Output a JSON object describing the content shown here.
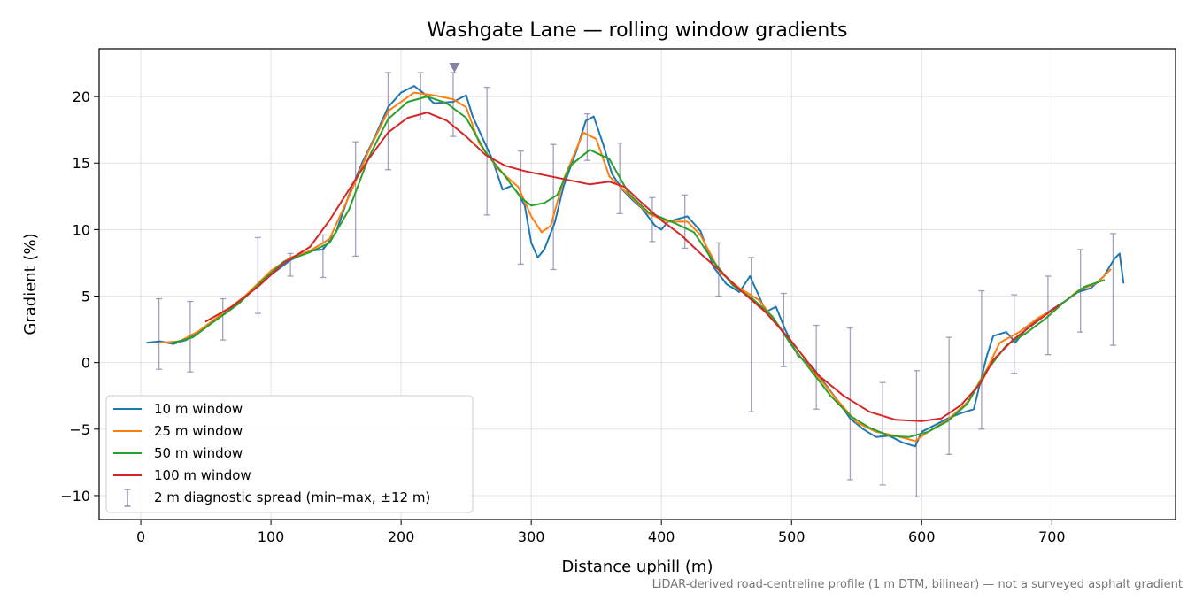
{
  "chart_data": {
    "type": "line",
    "title": "Washgate Lane — rolling window gradients",
    "xlabel": "Distance uphill (m)",
    "ylabel": "Gradient (%)",
    "xlim": [
      -32,
      795
    ],
    "ylim": [
      -11.8,
      23.6
    ],
    "x_ticks": [
      0,
      100,
      200,
      300,
      400,
      500,
      600,
      700
    ],
    "y_ticks": [
      -10,
      -5,
      0,
      5,
      10,
      15,
      20
    ],
    "x_tick_labels": [
      "0",
      "100",
      "200",
      "300",
      "400",
      "500",
      "600",
      "700"
    ],
    "y_tick_labels": [
      "−10",
      "−5",
      "0",
      "5",
      "10",
      "15",
      "20"
    ],
    "grid": true,
    "legend_position": "lower-left",
    "footnote": "LiDAR-derived road-centreline profile (1 m DTM, bilinear) — not a surveyed asphalt gradient",
    "marker": {
      "x": 241,
      "y": 22.2,
      "color": "#8a7fa8"
    },
    "series": [
      {
        "name": "10 m window",
        "color": "#1f77b4",
        "points": [
          [
            5,
            1.5
          ],
          [
            15,
            1.6
          ],
          [
            25,
            1.4
          ],
          [
            35,
            1.7
          ],
          [
            50,
            2.7
          ],
          [
            65,
            3.7
          ],
          [
            80,
            4.9
          ],
          [
            100,
            6.6
          ],
          [
            115,
            7.7
          ],
          [
            130,
            8.4
          ],
          [
            140,
            8.5
          ],
          [
            150,
            9.8
          ],
          [
            160,
            12.6
          ],
          [
            170,
            15.0
          ],
          [
            180,
            17.0
          ],
          [
            190,
            19.2
          ],
          [
            200,
            20.3
          ],
          [
            210,
            20.8
          ],
          [
            218,
            20.2
          ],
          [
            225,
            19.5
          ],
          [
            240,
            19.6
          ],
          [
            250,
            20.1
          ],
          [
            255,
            18.5
          ],
          [
            262,
            17.0
          ],
          [
            270,
            15.3
          ],
          [
            278,
            13.0
          ],
          [
            285,
            13.3
          ],
          [
            290,
            12.7
          ],
          [
            295,
            11.8
          ],
          [
            300,
            9.0
          ],
          [
            305,
            7.9
          ],
          [
            310,
            8.5
          ],
          [
            318,
            10.5
          ],
          [
            325,
            13.3
          ],
          [
            335,
            16.0
          ],
          [
            342,
            18.2
          ],
          [
            348,
            18.5
          ],
          [
            355,
            16.5
          ],
          [
            362,
            14.2
          ],
          [
            370,
            13.0
          ],
          [
            378,
            12.2
          ],
          [
            385,
            11.6
          ],
          [
            395,
            10.3
          ],
          [
            400,
            10.0
          ],
          [
            405,
            10.6
          ],
          [
            420,
            11.0
          ],
          [
            430,
            9.9
          ],
          [
            440,
            7.2
          ],
          [
            450,
            5.9
          ],
          [
            460,
            5.3
          ],
          [
            468,
            6.5
          ],
          [
            475,
            5.0
          ],
          [
            480,
            3.8
          ],
          [
            488,
            4.2
          ],
          [
            495,
            2.5
          ],
          [
            505,
            0.5
          ],
          [
            515,
            -0.2
          ],
          [
            525,
            -1.5
          ],
          [
            535,
            -2.8
          ],
          [
            545,
            -4.2
          ],
          [
            555,
            -5.0
          ],
          [
            565,
            -5.6
          ],
          [
            575,
            -5.5
          ],
          [
            585,
            -6.0
          ],
          [
            595,
            -6.3
          ],
          [
            600,
            -5.2
          ],
          [
            610,
            -4.7
          ],
          [
            620,
            -4.2
          ],
          [
            630,
            -3.8
          ],
          [
            640,
            -3.5
          ],
          [
            645,
            -1.5
          ],
          [
            650,
            0.5
          ],
          [
            655,
            2.0
          ],
          [
            665,
            2.3
          ],
          [
            672,
            1.5
          ],
          [
            680,
            2.5
          ],
          [
            690,
            3.3
          ],
          [
            700,
            4.0
          ],
          [
            710,
            4.6
          ],
          [
            720,
            5.3
          ],
          [
            730,
            5.6
          ],
          [
            740,
            6.5
          ],
          [
            748,
            7.8
          ],
          [
            752,
            8.2
          ],
          [
            755,
            6.0
          ]
        ]
      },
      {
        "name": "25 m window",
        "color": "#ff7f0e",
        "points": [
          [
            15,
            1.5
          ],
          [
            30,
            1.6
          ],
          [
            45,
            2.4
          ],
          [
            60,
            3.5
          ],
          [
            80,
            5.0
          ],
          [
            100,
            6.9
          ],
          [
            115,
            7.9
          ],
          [
            130,
            8.4
          ],
          [
            145,
            9.3
          ],
          [
            160,
            12.5
          ],
          [
            175,
            15.9
          ],
          [
            190,
            18.9
          ],
          [
            210,
            20.3
          ],
          [
            225,
            20.1
          ],
          [
            240,
            19.8
          ],
          [
            250,
            19.2
          ],
          [
            260,
            16.5
          ],
          [
            275,
            14.5
          ],
          [
            290,
            13.2
          ],
          [
            300,
            11.0
          ],
          [
            308,
            9.8
          ],
          [
            315,
            10.3
          ],
          [
            325,
            13.8
          ],
          [
            340,
            17.3
          ],
          [
            350,
            16.8
          ],
          [
            360,
            14.0
          ],
          [
            375,
            12.6
          ],
          [
            390,
            11.2
          ],
          [
            405,
            10.6
          ],
          [
            420,
            10.6
          ],
          [
            430,
            9.6
          ],
          [
            445,
            6.8
          ],
          [
            460,
            5.6
          ],
          [
            475,
            4.7
          ],
          [
            490,
            2.8
          ],
          [
            505,
            0.6
          ],
          [
            520,
            -1.0
          ],
          [
            535,
            -2.8
          ],
          [
            550,
            -4.5
          ],
          [
            565,
            -5.2
          ],
          [
            580,
            -5.5
          ],
          [
            595,
            -5.9
          ],
          [
            605,
            -5.2
          ],
          [
            620,
            -4.3
          ],
          [
            635,
            -3.0
          ],
          [
            650,
            -0.5
          ],
          [
            660,
            1.5
          ],
          [
            675,
            2.3
          ],
          [
            690,
            3.4
          ],
          [
            705,
            4.2
          ],
          [
            720,
            5.4
          ],
          [
            735,
            6.0
          ],
          [
            745,
            7.0
          ]
        ]
      },
      {
        "name": "50 m window",
        "color": "#2ca02c",
        "points": [
          [
            25,
            1.5
          ],
          [
            40,
            1.9
          ],
          [
            55,
            3.0
          ],
          [
            75,
            4.4
          ],
          [
            95,
            6.3
          ],
          [
            110,
            7.6
          ],
          [
            130,
            8.3
          ],
          [
            145,
            9.0
          ],
          [
            160,
            11.5
          ],
          [
            175,
            15.4
          ],
          [
            190,
            18.3
          ],
          [
            205,
            19.6
          ],
          [
            220,
            20.0
          ],
          [
            235,
            19.5
          ],
          [
            250,
            18.4
          ],
          [
            265,
            15.8
          ],
          [
            280,
            14.0
          ],
          [
            292,
            12.4
          ],
          [
            300,
            11.8
          ],
          [
            310,
            12.0
          ],
          [
            320,
            12.6
          ],
          [
            330,
            14.8
          ],
          [
            345,
            16.0
          ],
          [
            360,
            15.3
          ],
          [
            375,
            12.7
          ],
          [
            390,
            11.3
          ],
          [
            410,
            10.5
          ],
          [
            425,
            9.8
          ],
          [
            440,
            7.6
          ],
          [
            455,
            5.8
          ],
          [
            470,
            4.8
          ],
          [
            485,
            3.5
          ],
          [
            500,
            1.3
          ],
          [
            515,
            -0.6
          ],
          [
            530,
            -2.5
          ],
          [
            545,
            -4.0
          ],
          [
            560,
            -4.9
          ],
          [
            575,
            -5.5
          ],
          [
            590,
            -5.6
          ],
          [
            605,
            -5.2
          ],
          [
            620,
            -4.4
          ],
          [
            635,
            -3.1
          ],
          [
            650,
            -0.6
          ],
          [
            665,
            1.3
          ],
          [
            680,
            2.2
          ],
          [
            695,
            3.3
          ],
          [
            710,
            4.6
          ],
          [
            725,
            5.7
          ],
          [
            740,
            6.2
          ]
        ]
      },
      {
        "name": "100 m window",
        "color": "#d62728",
        "points": [
          [
            50,
            3.1
          ],
          [
            70,
            4.2
          ],
          [
            90,
            5.7
          ],
          [
            110,
            7.5
          ],
          [
            130,
            8.7
          ],
          [
            145,
            10.7
          ],
          [
            160,
            13.0
          ],
          [
            175,
            15.3
          ],
          [
            190,
            17.3
          ],
          [
            205,
            18.4
          ],
          [
            220,
            18.8
          ],
          [
            235,
            18.2
          ],
          [
            250,
            17.0
          ],
          [
            265,
            15.6
          ],
          [
            280,
            14.8
          ],
          [
            295,
            14.4
          ],
          [
            315,
            14.0
          ],
          [
            330,
            13.7
          ],
          [
            345,
            13.4
          ],
          [
            360,
            13.6
          ],
          [
            372,
            13.2
          ],
          [
            385,
            12.0
          ],
          [
            400,
            10.7
          ],
          [
            415,
            9.6
          ],
          [
            430,
            8.2
          ],
          [
            445,
            6.9
          ],
          [
            460,
            5.5
          ],
          [
            480,
            3.8
          ],
          [
            500,
            1.6
          ],
          [
            520,
            -0.9
          ],
          [
            540,
            -2.5
          ],
          [
            560,
            -3.7
          ],
          [
            580,
            -4.3
          ],
          [
            600,
            -4.4
          ],
          [
            615,
            -4.2
          ],
          [
            630,
            -3.2
          ],
          [
            645,
            -1.6
          ],
          [
            655,
            0.2
          ],
          [
            670,
            1.7
          ],
          [
            690,
            3.2
          ],
          [
            705,
            4.3
          ]
        ]
      }
    ],
    "errorbars": {
      "name": "2 m diagnostic spread (min–max, ±12 m)",
      "color": "#8a7fa8",
      "points": [
        [
          14,
          -0.5,
          4.8
        ],
        [
          38,
          -0.7,
          4.6
        ],
        [
          63,
          1.7,
          4.8
        ],
        [
          90,
          3.7,
          9.4
        ],
        [
          115,
          6.5,
          8.2
        ],
        [
          140,
          6.4,
          9.6
        ],
        [
          165,
          8.0,
          16.6
        ],
        [
          190,
          14.5,
          21.8
        ],
        [
          215,
          18.3,
          21.8
        ],
        [
          240,
          17.0,
          21.8
        ],
        [
          266,
          11.1,
          20.7
        ],
        [
          292,
          7.4,
          15.9
        ],
        [
          317,
          7.0,
          16.4
        ],
        [
          343,
          15.2,
          18.7
        ],
        [
          368,
          11.2,
          16.5
        ],
        [
          393,
          9.1,
          12.4
        ],
        [
          418,
          8.6,
          12.6
        ],
        [
          444,
          5.0,
          9.0
        ],
        [
          469,
          -3.7,
          7.9
        ],
        [
          494,
          -0.3,
          5.2
        ],
        [
          519,
          -3.5,
          2.8
        ],
        [
          545,
          -8.8,
          2.6
        ],
        [
          570,
          -9.2,
          -1.5
        ],
        [
          596,
          -10.1,
          -0.6
        ],
        [
          621,
          -6.9,
          1.9
        ],
        [
          646,
          -5.0,
          5.4
        ],
        [
          671,
          -0.8,
          5.1
        ],
        [
          697,
          0.6,
          6.5
        ],
        [
          722,
          2.3,
          8.5
        ],
        [
          747,
          1.3,
          9.7
        ]
      ]
    }
  }
}
